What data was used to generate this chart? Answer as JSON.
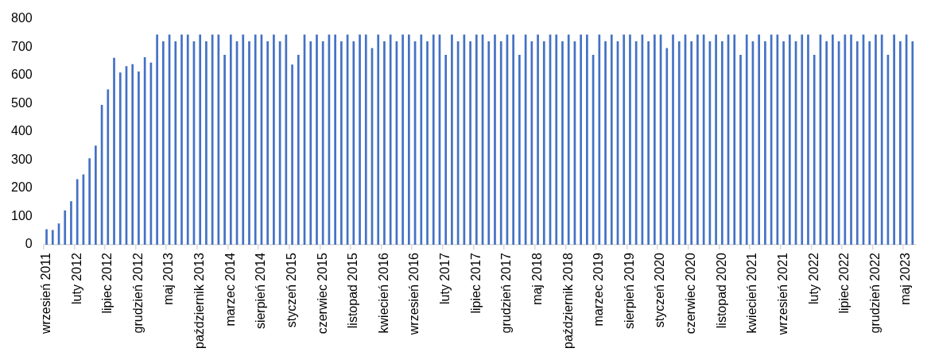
{
  "chart_data": {
    "type": "bar",
    "categories": [
      "wrzesień 2011",
      null,
      null,
      null,
      null,
      "luty 2012",
      null,
      null,
      null,
      null,
      "lipiec 2012",
      null,
      null,
      null,
      null,
      "grudzień 2012",
      null,
      null,
      null,
      null,
      "maj 2013",
      null,
      null,
      null,
      null,
      "październik 2013",
      null,
      null,
      null,
      null,
      "marzec 2014",
      null,
      null,
      null,
      null,
      "sierpień 2014",
      null,
      null,
      null,
      null,
      "styczeń 2015",
      null,
      null,
      null,
      null,
      "czerwiec 2015",
      null,
      null,
      null,
      null,
      "listopad 2015",
      null,
      null,
      null,
      null,
      "kwiecień 2016",
      null,
      null,
      null,
      null,
      "wrzesień 2016",
      null,
      null,
      null,
      null,
      "luty 2017",
      null,
      null,
      null,
      null,
      "lipiec 2017",
      null,
      null,
      null,
      null,
      "grudzień 2017",
      null,
      null,
      null,
      null,
      "maj 2018",
      null,
      null,
      null,
      null,
      "październik 2018",
      null,
      null,
      null,
      null,
      "marzec 2019",
      null,
      null,
      null,
      null,
      "sierpień 2019",
      null,
      null,
      null,
      null,
      "styczeń 2020",
      null,
      null,
      null,
      null,
      "czerwiec 2020",
      null,
      null,
      null,
      null,
      "listopad 2020",
      null,
      null,
      null,
      null,
      "kwiecień 2021",
      null,
      null,
      null,
      null,
      "wrzesień 2021",
      null,
      null,
      null,
      null,
      "luty 2022",
      null,
      null,
      null,
      null,
      "lipiec 2022",
      null,
      null,
      null,
      null,
      "grudzień 2022",
      null,
      null,
      null,
      null,
      "maj 2023",
      null
    ],
    "values": [
      55,
      52,
      75,
      122,
      154,
      232,
      249,
      306,
      351,
      495,
      550,
      662,
      610,
      632,
      639,
      613,
      664,
      645,
      744,
      720,
      744,
      720,
      744,
      744,
      720,
      744,
      720,
      744,
      744,
      672,
      744,
      720,
      744,
      720,
      744,
      744,
      720,
      744,
      720,
      744,
      638,
      672,
      744,
      720,
      744,
      720,
      744,
      744,
      720,
      744,
      720,
      744,
      744,
      696,
      744,
      720,
      744,
      720,
      744,
      744,
      720,
      744,
      720,
      744,
      744,
      672,
      744,
      720,
      744,
      720,
      744,
      744,
      720,
      744,
      720,
      744,
      744,
      672,
      744,
      720,
      744,
      720,
      744,
      744,
      720,
      744,
      720,
      744,
      744,
      672,
      744,
      720,
      744,
      720,
      744,
      744,
      720,
      744,
      720,
      744,
      744,
      696,
      744,
      720,
      744,
      720,
      744,
      744,
      720,
      744,
      720,
      744,
      744,
      672,
      744,
      720,
      744,
      720,
      744,
      744,
      720,
      744,
      720,
      744,
      744,
      672,
      744,
      720,
      744,
      720,
      744,
      744,
      720,
      744,
      720,
      744,
      744,
      672,
      744,
      720,
      744,
      720
    ],
    "color": "#4472c4",
    "ylim": [
      0,
      800
    ],
    "yticks": [
      0,
      100,
      200,
      300,
      400,
      500,
      600,
      700,
      800
    ],
    "grid": false,
    "legend": false
  }
}
